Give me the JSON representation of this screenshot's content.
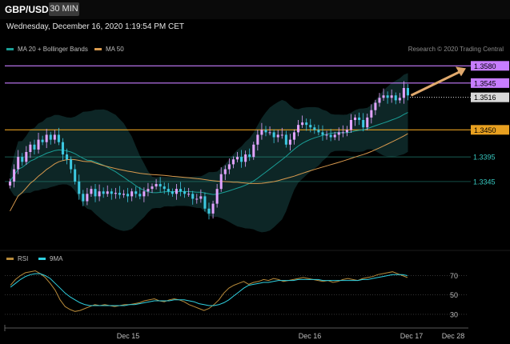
{
  "header": {
    "symbol": "GBP/USD",
    "timeframe": "30 MIN",
    "datetime": "Wednesday, December 16, 2020 1:19:54 PM CET",
    "research": "Research © 2020 Trading Central"
  },
  "legend": {
    "ma20": "MA 20 + Bollinger Bands",
    "ma50": "MA 50",
    "ma20_color": "#1a9e96",
    "ma50_color": "#d99a4e"
  },
  "rsi_legend": {
    "rsi": "RSI",
    "ma9": "9MA",
    "rsi_color": "#b88a3a",
    "ma9_color": "#2fd0e0"
  },
  "chart_data": [
    {
      "type": "candlestick",
      "title": "GBP/USD",
      "ylim": [
        1.321,
        1.36
      ],
      "x_ticks": [
        "Dec 15",
        "Dec 16",
        "Dec 17",
        "Dec 28"
      ],
      "levels": [
        {
          "label": "1.3580",
          "value": 1.358,
          "color": "#c77dff",
          "style": "solid"
        },
        {
          "label": "1.3545",
          "value": 1.3545,
          "color": "#c77dff",
          "style": "solid"
        },
        {
          "label": "1.3516",
          "value": 1.3516,
          "color": "#ffffff",
          "style": "dotted"
        },
        {
          "label": "1.3450",
          "value": 1.345,
          "color": "#e8a020",
          "style": "solid"
        },
        {
          "label": "1.3395",
          "value": 1.3395,
          "color": "#2a9c8c",
          "style": "thin"
        },
        {
          "label": "1.3345",
          "value": 1.3345,
          "color": "#2a9c8c",
          "style": "thin"
        }
      ],
      "close": [
        1.3345,
        1.337,
        1.3395,
        1.3385,
        1.3405,
        1.342,
        1.341,
        1.343,
        1.3425,
        1.344,
        1.343,
        1.344,
        1.3425,
        1.34,
        1.339,
        1.337,
        1.3345,
        1.332,
        1.3305,
        1.332,
        1.333,
        1.3315,
        1.3325,
        1.332,
        1.3325,
        1.332,
        1.3322,
        1.3318,
        1.332,
        1.3315,
        1.3325,
        1.332,
        1.3315,
        1.3325,
        1.333,
        1.3335,
        1.334,
        1.3335,
        1.333,
        1.3325,
        1.332,
        1.333,
        1.3325,
        1.332,
        1.332,
        1.331,
        1.331,
        1.3315,
        1.329,
        1.328,
        1.33,
        1.333,
        1.336,
        1.337,
        1.338,
        1.339,
        1.3395,
        1.3385,
        1.34,
        1.3395,
        1.342,
        1.344,
        1.345,
        1.3445,
        1.3445,
        1.3435,
        1.344,
        1.344,
        1.342,
        1.343,
        1.3445,
        1.346,
        1.3465,
        1.346,
        1.3455,
        1.345,
        1.3445,
        1.344,
        1.344,
        1.3435,
        1.344,
        1.3445,
        1.3445,
        1.345,
        1.347,
        1.3475,
        1.347,
        1.3455,
        1.3475,
        1.349,
        1.3505,
        1.3515,
        1.352,
        1.3515,
        1.352,
        1.351,
        1.3515,
        1.3535,
        1.352
      ],
      "ma20_color": "#1a9e96",
      "ma50_color": "#d99a4e",
      "band_color": "#0e2a2a",
      "arrow": {
        "from_value": 1.352,
        "to_value": 1.3575,
        "color": "#e0a96d"
      },
      "grid": false
    },
    {
      "type": "line",
      "title": "RSI",
      "ylim": [
        20,
        82
      ],
      "y_ticks": [
        "70",
        "50",
        "30"
      ],
      "series": [
        {
          "name": "RSI",
          "values": [
            60,
            66,
            70,
            73,
            74,
            75,
            72,
            68,
            62,
            55,
            45,
            38,
            35,
            33,
            34,
            36,
            38,
            40,
            39,
            40,
            39,
            38,
            39,
            40,
            40,
            41,
            42,
            44,
            45,
            46,
            44,
            43,
            45,
            46,
            45,
            43,
            40,
            38,
            36,
            34,
            36,
            40,
            45,
            52,
            57,
            60,
            62,
            64,
            61,
            63,
            64,
            66,
            65,
            67,
            66,
            64,
            65,
            66,
            67,
            68,
            67,
            66,
            65,
            64,
            65,
            63,
            64,
            66,
            67,
            66,
            65,
            67,
            68,
            69,
            71,
            72,
            73,
            74,
            72,
            70,
            68
          ]
        },
        {
          "name": "9MA",
          "values": [
            58,
            62,
            66,
            69,
            71,
            72,
            72,
            70,
            67,
            62,
            57,
            52,
            48,
            45,
            42,
            40,
            39,
            39,
            39,
            39,
            39,
            39,
            39,
            39,
            40,
            40,
            41,
            42,
            43,
            44,
            44,
            44,
            44,
            45,
            45,
            45,
            44,
            43,
            41,
            40,
            39,
            39,
            40,
            42,
            45,
            49,
            53,
            57,
            60,
            61,
            62,
            63,
            63,
            64,
            65,
            65,
            65,
            65,
            66,
            66,
            66,
            66,
            66,
            65,
            65,
            65,
            65,
            65,
            65,
            65,
            65,
            66,
            66,
            67,
            68,
            69,
            70,
            71,
            71,
            71,
            70
          ]
        }
      ],
      "grid": false
    }
  ]
}
